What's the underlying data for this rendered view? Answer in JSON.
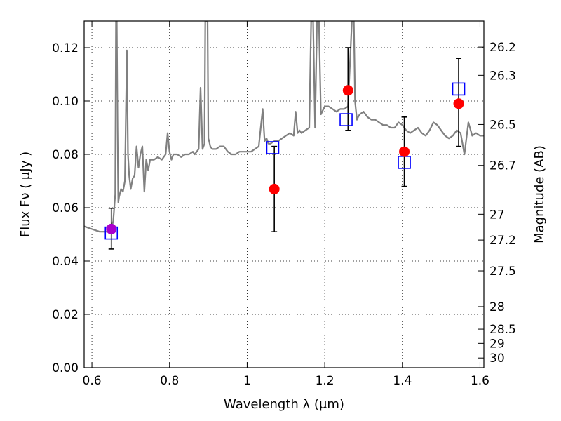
{
  "chart_data": {
    "type": "scatter",
    "xlabel": "Wavelength  λ (μm)",
    "ylabel": "Flux  Fν  ( μJy )",
    "y2label": "Magnitude (AB)",
    "xlim": [
      0.58,
      1.61
    ],
    "ylim": [
      0.0,
      0.13
    ],
    "grid": true,
    "xticks": [
      {
        "value": 0.6,
        "label": "0.6"
      },
      {
        "value": 0.8,
        "label": "0.8"
      },
      {
        "value": 1.0,
        "label": "1"
      },
      {
        "value": 1.2,
        "label": "1.2"
      },
      {
        "value": 1.4,
        "label": "1.4"
      },
      {
        "value": 1.6,
        "label": "1.6"
      }
    ],
    "yticks": [
      {
        "value": 0.0,
        "label": "0.00"
      },
      {
        "value": 0.02,
        "label": "0.02"
      },
      {
        "value": 0.04,
        "label": "0.04"
      },
      {
        "value": 0.06,
        "label": "0.06"
      },
      {
        "value": 0.08,
        "label": "0.08"
      },
      {
        "value": 0.1,
        "label": "0.10"
      },
      {
        "value": 0.12,
        "label": "0.12"
      }
    ],
    "mag_ticks": [
      {
        "value": 26.2,
        "label": "26.2"
      },
      {
        "value": 26.3,
        "label": "26.3"
      },
      {
        "value": 26.5,
        "label": "26.5"
      },
      {
        "value": 26.7,
        "label": "26.7"
      },
      {
        "value": 27.0,
        "label": "27"
      },
      {
        "value": 27.2,
        "label": "27.2"
      },
      {
        "value": 27.5,
        "label": "27.5"
      },
      {
        "value": 28.0,
        "label": "28"
      },
      {
        "value": 28.5,
        "label": "28.5"
      },
      {
        "value": 29.0,
        "label": "29"
      },
      {
        "value": 30.0,
        "label": "30"
      }
    ],
    "series": [
      {
        "kind": "line",
        "color": "#808080",
        "x": [
          0.58,
          0.6,
          0.62,
          0.64,
          0.65,
          0.655,
          0.66,
          0.662,
          0.664,
          0.666,
          0.668,
          0.67,
          0.675,
          0.68,
          0.685,
          0.69,
          0.693,
          0.696,
          0.7,
          0.705,
          0.71,
          0.715,
          0.72,
          0.725,
          0.73,
          0.735,
          0.74,
          0.745,
          0.75,
          0.76,
          0.77,
          0.78,
          0.79,
          0.795,
          0.8,
          0.805,
          0.81,
          0.82,
          0.83,
          0.84,
          0.85,
          0.86,
          0.865,
          0.87,
          0.875,
          0.88,
          0.885,
          0.89,
          0.892,
          0.895,
          0.898,
          0.9,
          0.902,
          0.905,
          0.91,
          0.92,
          0.93,
          0.94,
          0.95,
          0.96,
          0.97,
          0.98,
          0.99,
          1.0,
          1.01,
          1.02,
          1.03,
          1.04,
          1.045,
          1.05,
          1.055,
          1.06,
          1.07,
          1.08,
          1.09,
          1.1,
          1.11,
          1.12,
          1.125,
          1.13,
          1.135,
          1.14,
          1.15,
          1.16,
          1.165,
          1.17,
          1.175,
          1.18,
          1.185,
          1.19,
          1.2,
          1.21,
          1.22,
          1.23,
          1.24,
          1.25,
          1.26,
          1.27,
          1.272,
          1.275,
          1.278,
          1.28,
          1.283,
          1.286,
          1.29,
          1.3,
          1.31,
          1.32,
          1.33,
          1.34,
          1.35,
          1.36,
          1.37,
          1.38,
          1.39,
          1.4,
          1.41,
          1.42,
          1.43,
          1.44,
          1.45,
          1.46,
          1.47,
          1.48,
          1.49,
          1.5,
          1.51,
          1.52,
          1.53,
          1.54,
          1.55,
          1.56,
          1.57,
          1.58,
          1.59,
          1.6,
          1.61
        ],
        "y": [
          0.053,
          0.052,
          0.051,
          0.051,
          0.052,
          0.055,
          0.065,
          0.13,
          0.13,
          0.09,
          0.062,
          0.064,
          0.067,
          0.066,
          0.07,
          0.119,
          0.08,
          0.072,
          0.067,
          0.071,
          0.072,
          0.083,
          0.075,
          0.08,
          0.083,
          0.066,
          0.078,
          0.074,
          0.078,
          0.078,
          0.079,
          0.078,
          0.08,
          0.088,
          0.081,
          0.078,
          0.08,
          0.08,
          0.079,
          0.08,
          0.08,
          0.081,
          0.08,
          0.081,
          0.082,
          0.105,
          0.082,
          0.084,
          0.13,
          0.13,
          0.13,
          0.086,
          0.085,
          0.083,
          0.082,
          0.082,
          0.083,
          0.083,
          0.081,
          0.08,
          0.08,
          0.081,
          0.081,
          0.081,
          0.081,
          0.082,
          0.083,
          0.097,
          0.085,
          0.086,
          0.084,
          0.084,
          0.085,
          0.085,
          0.086,
          0.087,
          0.088,
          0.087,
          0.096,
          0.088,
          0.089,
          0.088,
          0.089,
          0.09,
          0.13,
          0.13,
          0.09,
          0.13,
          0.13,
          0.095,
          0.098,
          0.098,
          0.097,
          0.096,
          0.097,
          0.097,
          0.098,
          0.13,
          0.13,
          0.13,
          0.1,
          0.097,
          0.093,
          0.094,
          0.095,
          0.096,
          0.094,
          0.093,
          0.093,
          0.092,
          0.091,
          0.091,
          0.09,
          0.09,
          0.092,
          0.091,
          0.089,
          0.088,
          0.089,
          0.09,
          0.088,
          0.087,
          0.089,
          0.092,
          0.091,
          0.089,
          0.087,
          0.086,
          0.087,
          0.089,
          0.088,
          0.08,
          0.092,
          0.087,
          0.088,
          0.087,
          0.087
        ]
      },
      {
        "kind": "markers",
        "name": "",
        "marker": "open-square",
        "color": "#0000ff",
        "x": [
          0.65,
          1.066,
          1.255,
          1.405,
          1.545
        ],
        "y": [
          0.0505,
          0.0825,
          0.093,
          0.077,
          0.1045
        ]
      },
      {
        "kind": "markers",
        "name": "",
        "marker": "filled-circle",
        "color": "#ff0000",
        "x": [
          1.07,
          1.26,
          1.405,
          1.545
        ],
        "y": [
          0.067,
          0.104,
          0.081,
          0.099
        ],
        "yerr_low": [
          0.051,
          0.089,
          0.068,
          0.083
        ],
        "yerr_high": [
          0.083,
          0.12,
          0.094,
          0.116
        ]
      },
      {
        "kind": "markers",
        "name": "",
        "marker": "filled-circle",
        "color": "#aa00cc",
        "x": [
          0.65
        ],
        "y": [
          0.052
        ],
        "yerr_low": [
          0.0445
        ],
        "yerr_high": [
          0.0598
        ]
      }
    ]
  }
}
